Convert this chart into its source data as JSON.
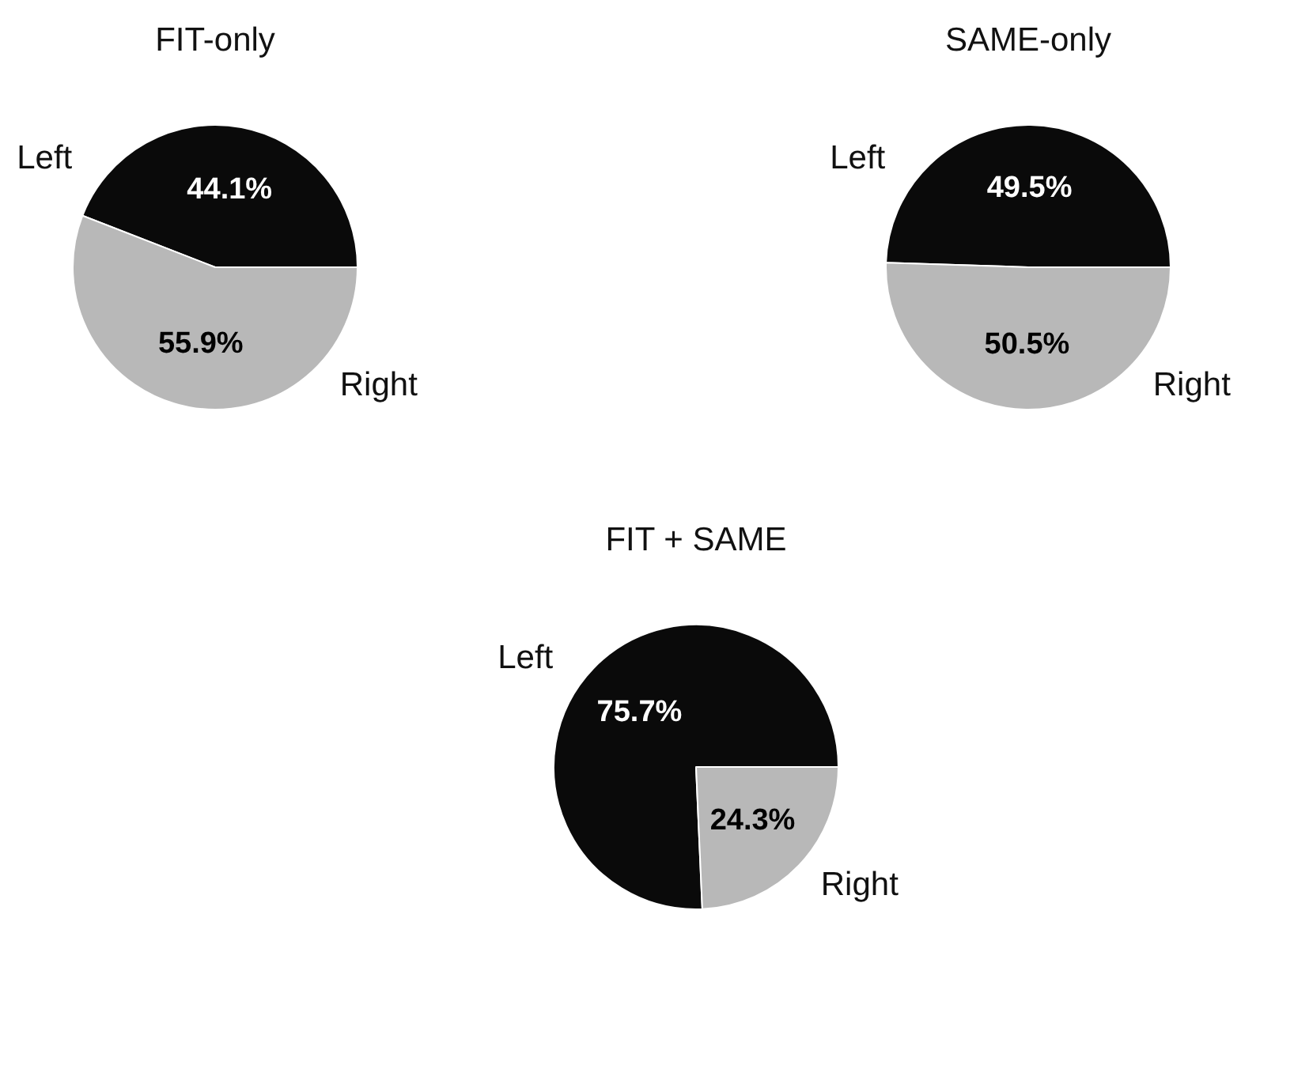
{
  "chart_data": [
    {
      "type": "pie",
      "title": "FIT-only",
      "categories": [
        "Left",
        "Right"
      ],
      "values": [
        44.1,
        55.9
      ],
      "colors": [
        "#0a0a0a",
        "#b8b8b8"
      ],
      "value_labels": [
        "44.1%",
        "55.9%"
      ]
    },
    {
      "type": "pie",
      "title": "SAME-only",
      "categories": [
        "Left",
        "Right"
      ],
      "values": [
        49.5,
        50.5
      ],
      "colors": [
        "#0a0a0a",
        "#b8b8b8"
      ],
      "value_labels": [
        "49.5%",
        "50.5%"
      ]
    },
    {
      "type": "pie",
      "title": "FIT + SAME",
      "categories": [
        "Left",
        "Right"
      ],
      "values": [
        75.7,
        24.3
      ],
      "colors": [
        "#0a0a0a",
        "#b8b8b8"
      ],
      "value_labels": [
        "75.7%",
        "24.3%"
      ]
    }
  ]
}
